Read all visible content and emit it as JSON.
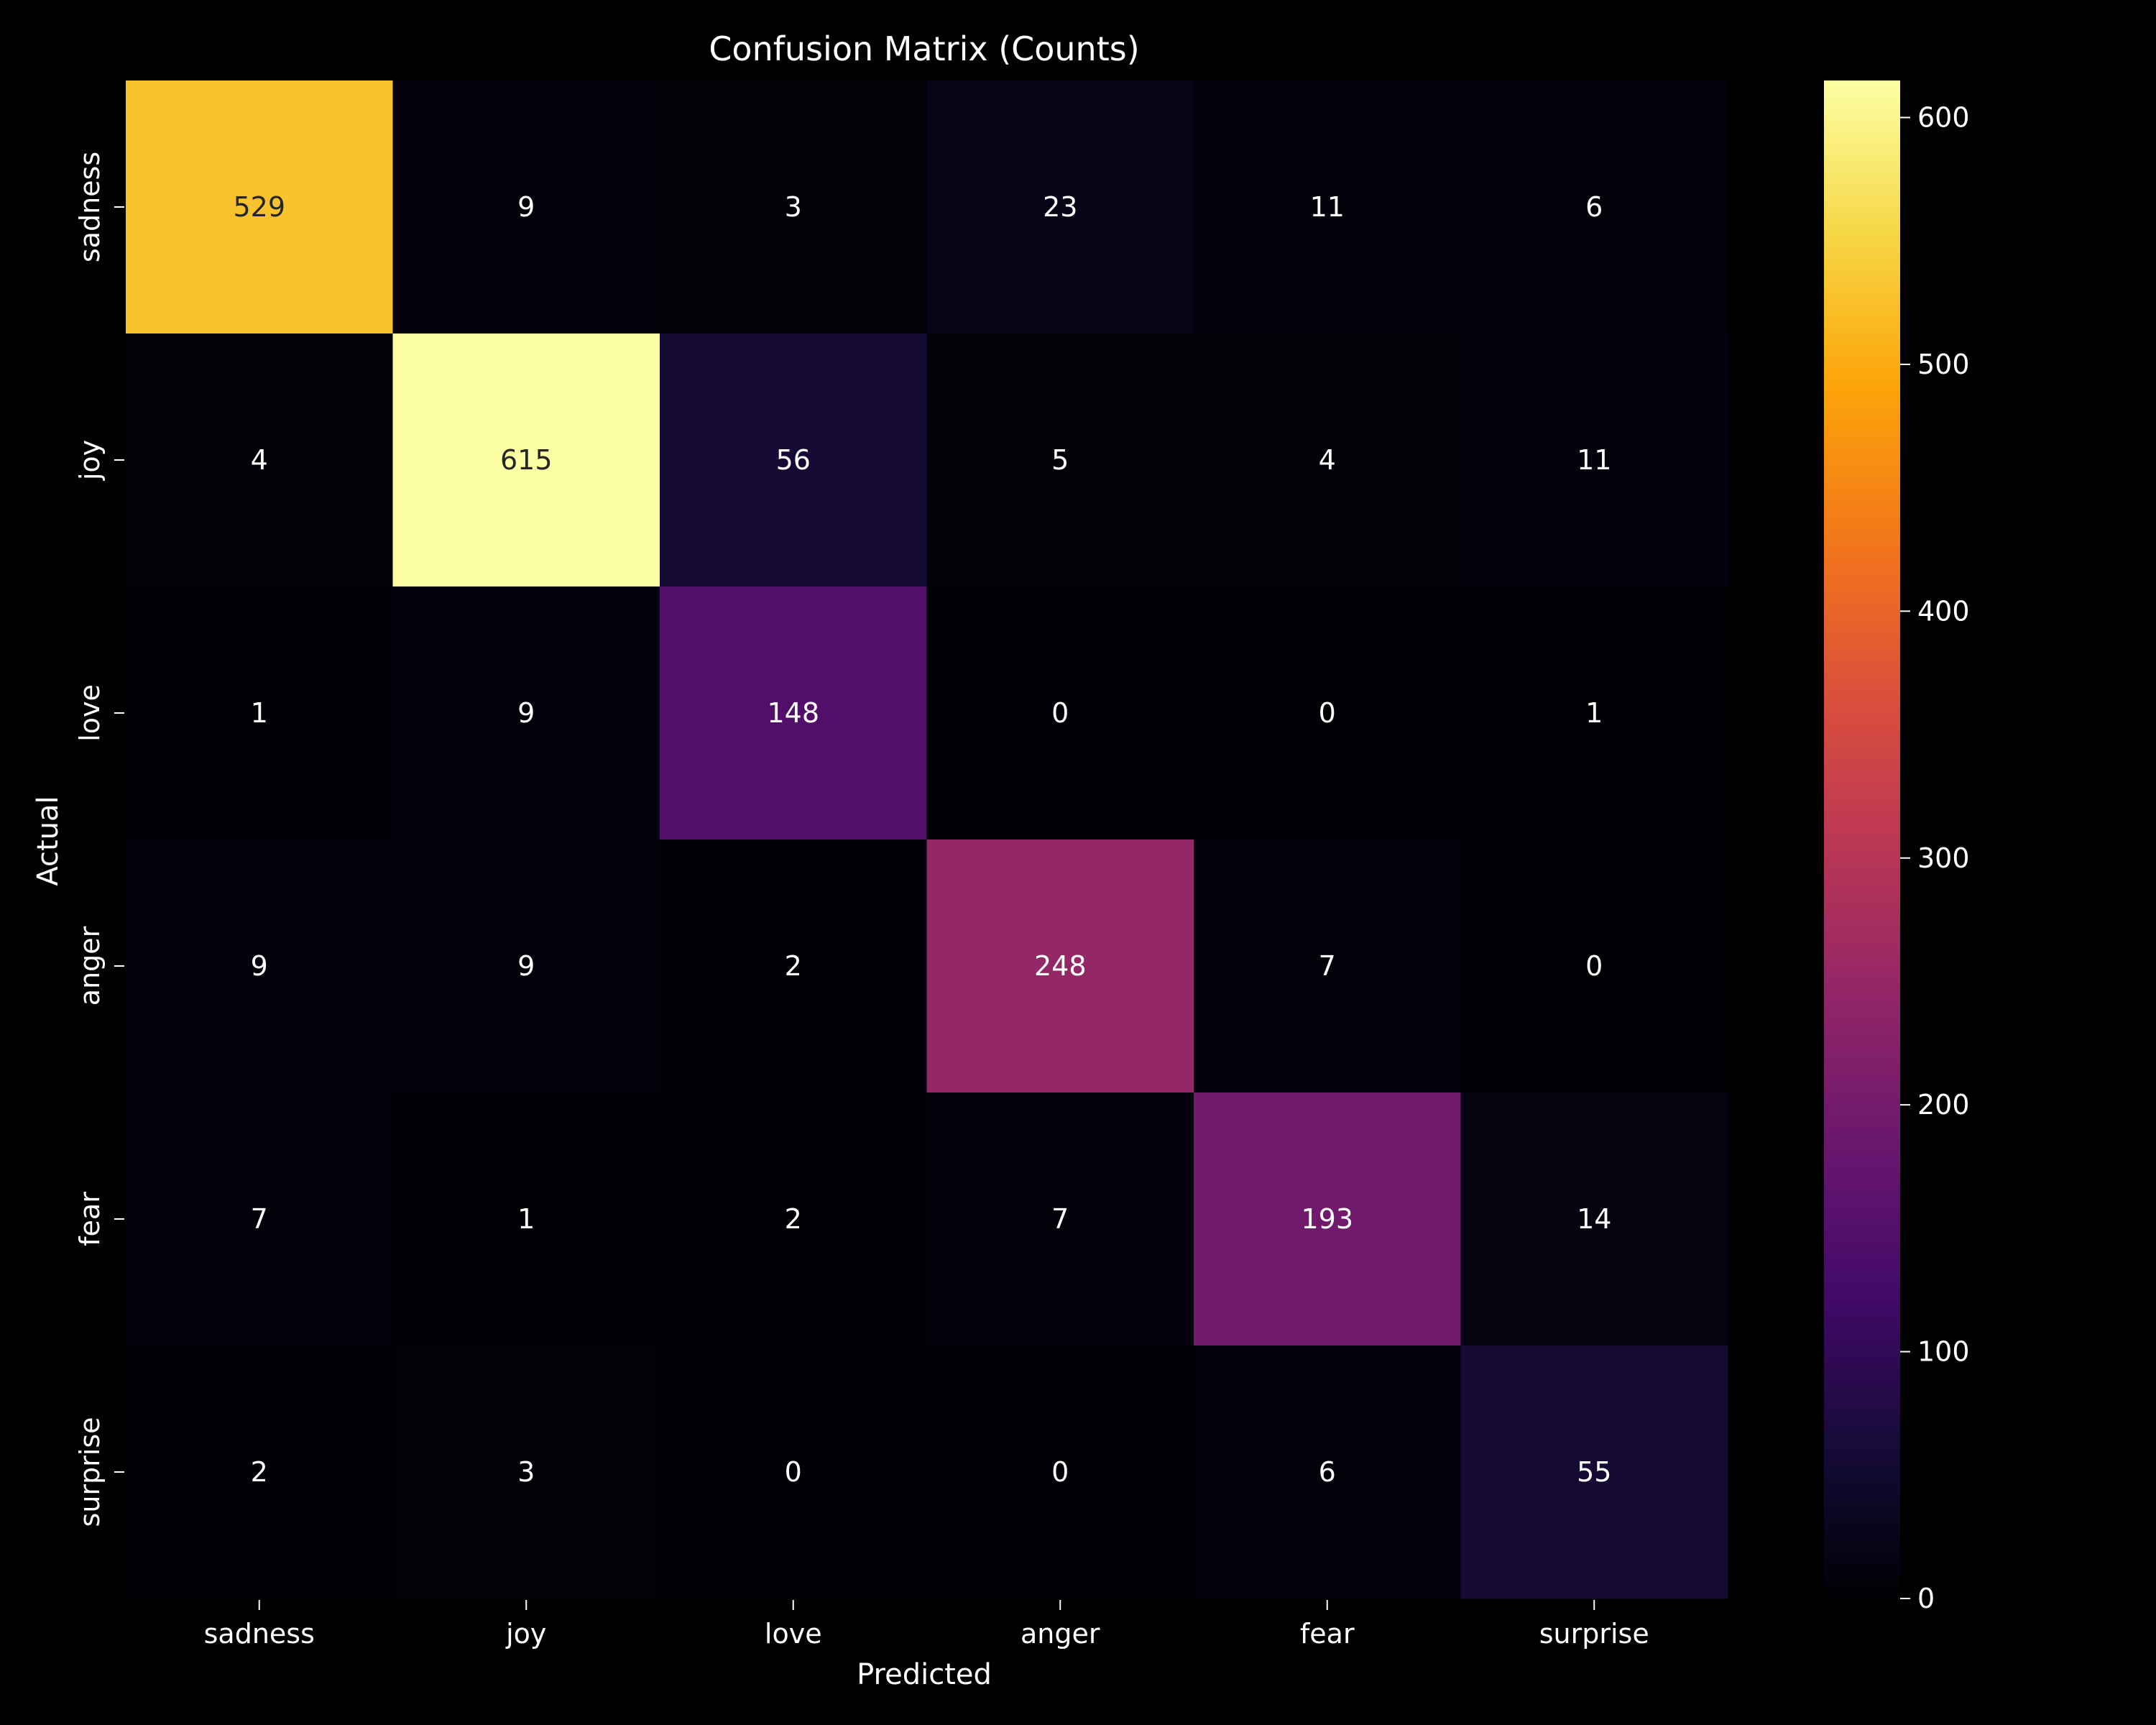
{
  "chart_data": {
    "type": "heatmap",
    "title": "Confusion Matrix (Counts)",
    "xlabel": "Predicted",
    "ylabel": "Actual",
    "x_categories": [
      "sadness",
      "joy",
      "love",
      "anger",
      "fear",
      "surprise"
    ],
    "y_categories": [
      "sadness",
      "joy",
      "love",
      "anger",
      "fear",
      "surprise"
    ],
    "values": [
      [
        529,
        9,
        3,
        23,
        11,
        6
      ],
      [
        4,
        615,
        56,
        5,
        4,
        11
      ],
      [
        1,
        9,
        148,
        0,
        0,
        1
      ],
      [
        9,
        9,
        2,
        248,
        7,
        0
      ],
      [
        7,
        1,
        2,
        7,
        193,
        14
      ],
      [
        2,
        3,
        0,
        0,
        6,
        55
      ]
    ],
    "colormap": "inferno",
    "colorbar": {
      "range": [
        0,
        615
      ],
      "ticks": [
        0,
        100,
        200,
        300,
        400,
        500,
        600
      ]
    },
    "background": "#000000",
    "grid": false,
    "legend": "colorbar-right"
  }
}
